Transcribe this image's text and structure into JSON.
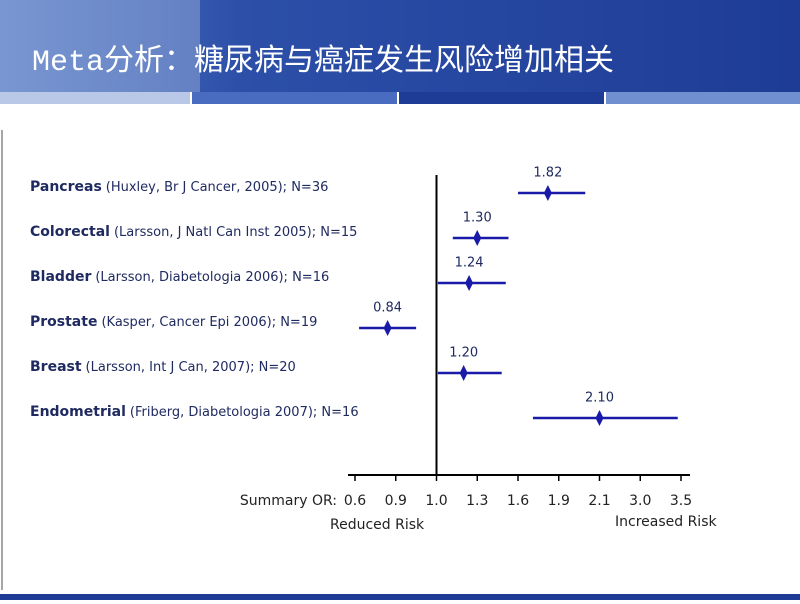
{
  "chart_data": {
    "type": "forest",
    "title": "Meta分析：糖尿病与癌症发生风险增加相关",
    "categories": [
      "Pancreas",
      "Colorectal",
      "Bladder",
      "Prostate",
      "Breast",
      "Endometrial"
    ],
    "sources": [
      "(Huxley, Br J Cancer, 2005); N=36",
      "(Larsson, J Natl Can Inst 2005); N=15",
      "(Larsson, Diabetologia 2006); N=16",
      "(Kasper, Cancer Epi  2006); N=19",
      "(Larsson, Int J Can, 2007); N=20",
      "(Friberg, Diabetologia 2007); N=16"
    ],
    "values": [
      1.82,
      1.3,
      1.24,
      0.84,
      1.2,
      2.1
    ],
    "value_labels": [
      "1.82",
      "1.30",
      "1.24",
      "0.84",
      "1.20",
      "2.10"
    ],
    "ci_low": [
      1.6,
      1.12,
      1.01,
      0.63,
      1.01,
      1.71
    ],
    "ci_high": [
      2.03,
      1.53,
      1.51,
      0.95,
      1.48,
      3.46
    ],
    "color": "#1a1aa8",
    "xticks": [
      0.6,
      0.9,
      {
        "value": 1,
        "label": "1.0"
      },
      1.3,
      1.6,
      1.9,
      2.1,
      {
        "value": 3,
        "label": "3.0"
      },
      3.5
    ],
    "xlim": [
      0.6,
      3.5
    ],
    "reference": {
      "value": 1,
      "label": "1.0"
    },
    "x_axis_prefix": "Summary OR:",
    "left_label": "Reduced Risk",
    "right_label": "Increased Risk"
  }
}
